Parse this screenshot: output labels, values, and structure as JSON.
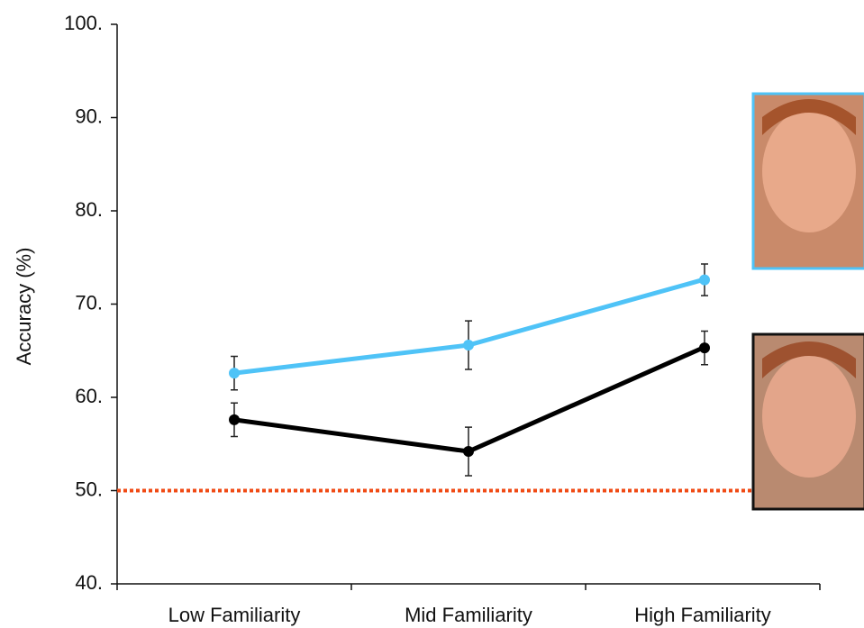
{
  "chart_data": {
    "type": "line",
    "y_label": "Accuracy (%)",
    "categories": [
      "Low Familiarity",
      "Mid Familiarity",
      "High Familiarity"
    ],
    "series": [
      {
        "color": "#4fc3f7",
        "values": [
          62.6,
          65.6,
          72.6
        ],
        "errors": [
          1.8,
          2.6,
          1.7
        ]
      },
      {
        "color": "#000000",
        "values": [
          57.6,
          54.2,
          65.3
        ],
        "errors": [
          1.8,
          2.6,
          1.8
        ]
      }
    ],
    "ylim": [
      40,
      100
    ],
    "yticks": [
      {
        "value": 40,
        "label": "40."
      },
      {
        "value": 50,
        "label": "50."
      },
      {
        "value": 60,
        "label": "60."
      },
      {
        "value": 70,
        "label": "70."
      },
      {
        "value": 80,
        "label": "80."
      },
      {
        "value": 90,
        "label": "90."
      },
      {
        "value": 100,
        "label": "100."
      }
    ],
    "reference_line": {
      "value": 50,
      "color": "#f04a14"
    }
  }
}
